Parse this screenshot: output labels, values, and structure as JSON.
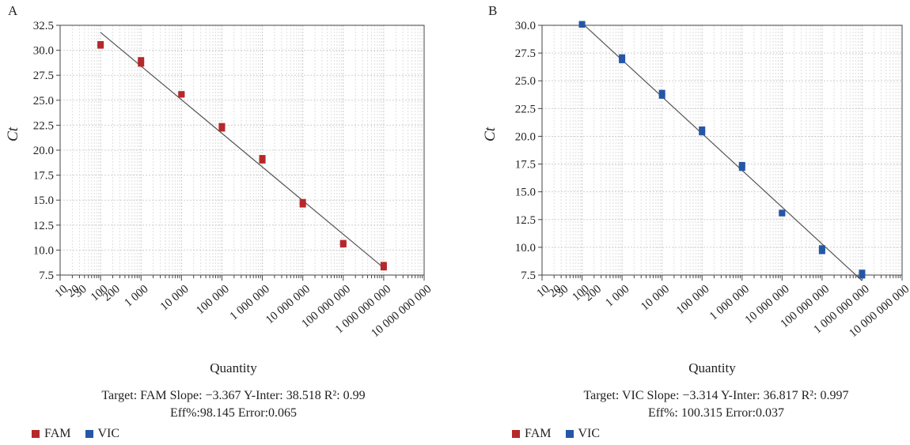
{
  "panels": [
    {
      "letter": "A",
      "ylabel": "Ct",
      "xlabel": "Quantity",
      "stats_line1": "Target: FAM  Slope: −3.367 Y-Inter: 38.518  R²: 0.99",
      "stats_line2": "Eff%:98.145  Error:0.065"
    },
    {
      "letter": "B",
      "ylabel": "Ct",
      "xlabel": "Quantity",
      "stats_line1": "Target: VIC  Slope: −3.314 Y-Inter: 36.817  R²: 0.997",
      "stats_line2": "Eff%: 100.315  Error:0.037"
    }
  ],
  "legend": [
    {
      "label": "FAM",
      "color": "#b5282b"
    },
    {
      "label": "VIC",
      "color": "#2457a6"
    }
  ],
  "chart_data": [
    {
      "type": "scatter",
      "target": "FAM",
      "log_x": true,
      "xlim": [
        10,
        10000000000
      ],
      "ylim": [
        7.5,
        32.5
      ],
      "yticks": [
        "7.5",
        "10.0",
        "12.5",
        "15.0",
        "17.5",
        "20.0",
        "22.5",
        "25.0",
        "27.5",
        "30.0",
        "32.5"
      ],
      "xticks": [
        {
          "value": 10,
          "label": "10"
        },
        {
          "value": 20,
          "label": "20"
        },
        {
          "value": 30,
          "label": "30"
        },
        {
          "value": 100,
          "label": "100"
        },
        {
          "value": 200,
          "label": "200"
        },
        {
          "value": 1000,
          "label": "1 000"
        },
        {
          "value": 10000,
          "label": "10 000"
        },
        {
          "value": 100000,
          "label": "100 000"
        },
        {
          "value": 1000000,
          "label": "1 000 000"
        },
        {
          "value": 10000000,
          "label": "10 000 000"
        },
        {
          "value": 100000000,
          "label": "100 000 000"
        },
        {
          "value": 1000000000,
          "label": "1 000 000 000"
        },
        {
          "value": 10000000000,
          "label": "10 000 000 000"
        }
      ],
      "series": [
        {
          "name": "FAM",
          "color": "#b5282b",
          "points": [
            {
              "x": 100,
              "y": 30.4
            },
            {
              "x": 100,
              "y": 30.6
            },
            {
              "x": 1000,
              "y": 28.6
            },
            {
              "x": 1000,
              "y": 29.0
            },
            {
              "x": 10000,
              "y": 25.5
            },
            {
              "x": 10000,
              "y": 25.6
            },
            {
              "x": 100000,
              "y": 22.1
            },
            {
              "x": 100000,
              "y": 22.4
            },
            {
              "x": 1000000,
              "y": 18.9
            },
            {
              "x": 1000000,
              "y": 19.2
            },
            {
              "x": 10000000,
              "y": 14.5
            },
            {
              "x": 10000000,
              "y": 14.8
            },
            {
              "x": 100000000,
              "y": 10.5
            },
            {
              "x": 100000000,
              "y": 10.7
            },
            {
              "x": 1000000000,
              "y": 8.2
            },
            {
              "x": 1000000000,
              "y": 8.5
            }
          ]
        }
      ],
      "fit": {
        "slope": -3.367,
        "intercept": 38.518,
        "x_from": 100,
        "x_to": 1000000000
      }
    },
    {
      "type": "scatter",
      "target": "VIC",
      "log_x": true,
      "xlim": [
        10,
        10000000000
      ],
      "ylim": [
        7.5,
        30.0
      ],
      "yticks": [
        "7.5",
        "10.0",
        "12.5",
        "15.0",
        "17.5",
        "20.0",
        "22.5",
        "25.0",
        "27.5",
        "30.0"
      ],
      "xticks": [
        {
          "value": 10,
          "label": "10"
        },
        {
          "value": 20,
          "label": "20"
        },
        {
          "value": 30,
          "label": "30"
        },
        {
          "value": 100,
          "label": "100"
        },
        {
          "value": 200,
          "label": "200"
        },
        {
          "value": 1000,
          "label": "1 000"
        },
        {
          "value": 10000,
          "label": "10 000"
        },
        {
          "value": 100000,
          "label": "100 000"
        },
        {
          "value": 1000000,
          "label": "1 000 000"
        },
        {
          "value": 10000000,
          "label": "10 000 000"
        },
        {
          "value": 100000000,
          "label": "100 000 000"
        },
        {
          "value": 1000000000,
          "label": "1 000 000 000"
        },
        {
          "value": 10000000000,
          "label": "10 000 000 000"
        }
      ],
      "series": [
        {
          "name": "VIC",
          "color": "#2457a6",
          "points": [
            {
              "x": 100,
              "y": 30.0
            },
            {
              "x": 100,
              "y": 30.1
            },
            {
              "x": 1000,
              "y": 26.8
            },
            {
              "x": 1000,
              "y": 27.1
            },
            {
              "x": 10000,
              "y": 23.6
            },
            {
              "x": 10000,
              "y": 23.9
            },
            {
              "x": 100000,
              "y": 20.3
            },
            {
              "x": 100000,
              "y": 20.6
            },
            {
              "x": 1000000,
              "y": 17.1
            },
            {
              "x": 1000000,
              "y": 17.4
            },
            {
              "x": 10000000,
              "y": 13.0
            },
            {
              "x": 10000000,
              "y": 13.1
            },
            {
              "x": 100000000,
              "y": 9.6
            },
            {
              "x": 100000000,
              "y": 9.9
            },
            {
              "x": 1000000000,
              "y": 7.4
            },
            {
              "x": 1000000000,
              "y": 7.7
            }
          ]
        }
      ],
      "fit": {
        "slope": -3.314,
        "intercept": 36.817,
        "x_from": 100,
        "x_to": 1000000000
      }
    }
  ]
}
